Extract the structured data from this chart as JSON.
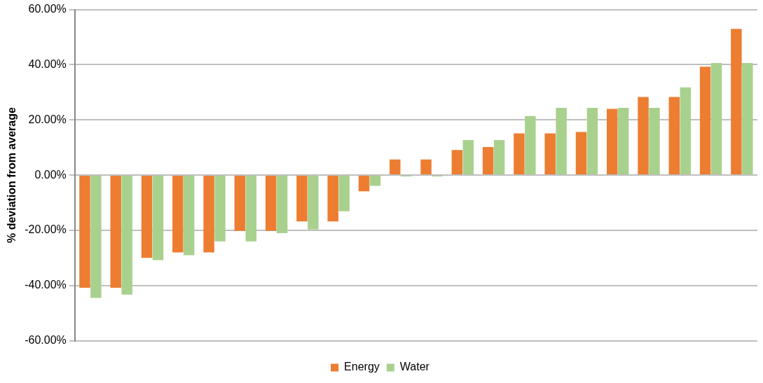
{
  "chart_data": {
    "type": "bar",
    "ylabel": "% deviation from average",
    "categories": [
      null,
      null,
      null,
      null,
      null,
      null,
      null,
      null,
      null,
      null,
      null,
      null,
      null,
      null,
      null,
      null,
      null,
      null,
      null,
      null,
      null,
      null
    ],
    "series": [
      {
        "name": "Energy",
        "color": "#ed7d31",
        "values": [
          -40.8,
          -40.8,
          -30,
          -28,
          -28,
          -20.2,
          -20.2,
          -16.8,
          -16.8,
          -5.9,
          5.7,
          5.7,
          9.1,
          10.2,
          15.1,
          15.1,
          15.6,
          24.0,
          28.3,
          28.3,
          39.3,
          53.0
        ]
      },
      {
        "name": "Water",
        "color": "#a9d18e",
        "values": [
          -44.5,
          -43.3,
          -30.8,
          -29,
          -24,
          -24,
          -21,
          -19.7,
          -13.1,
          -3.9,
          -0.5,
          -0.5,
          12.7,
          12.7,
          21.4,
          24.4,
          24.4,
          24.4,
          24.4,
          31.8,
          40.6,
          40.6
        ]
      }
    ],
    "ylim": [
      -60,
      60
    ],
    "yticks": [
      {
        "value": -60,
        "label": "-60.00%"
      },
      {
        "value": -40,
        "label": "-40.00%"
      },
      {
        "value": -20,
        "label": "-20.00%"
      },
      {
        "value": 0,
        "label": "0.00%"
      },
      {
        "value": 20,
        "label": "20.00%"
      },
      {
        "value": 40,
        "label": "40.00%"
      },
      {
        "value": 60,
        "label": "60.00%"
      }
    ],
    "grid": "y",
    "legend": "bottom"
  }
}
